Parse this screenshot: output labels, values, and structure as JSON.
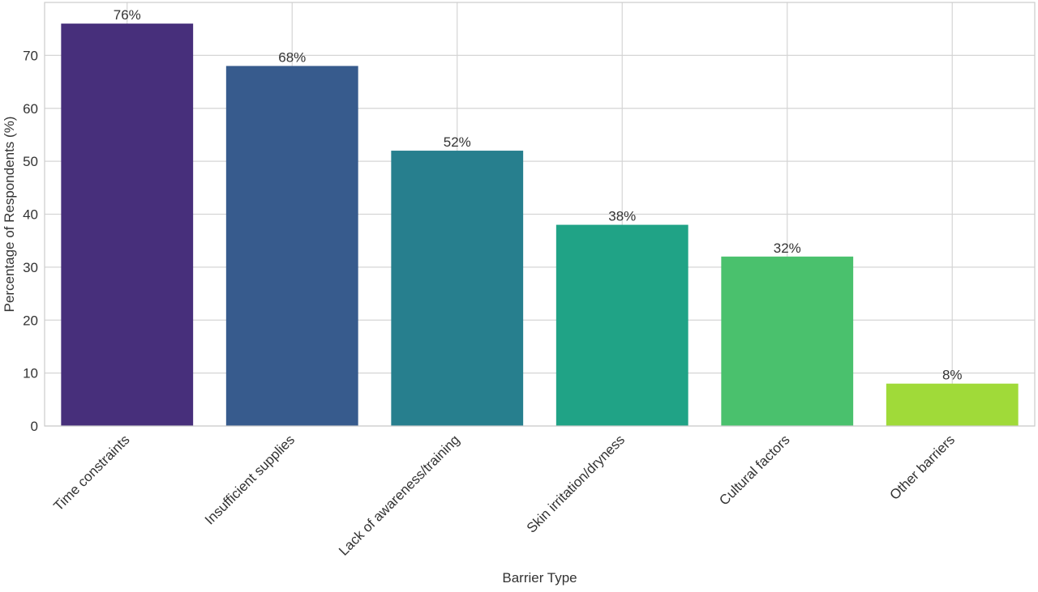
{
  "chart_data": {
    "type": "bar",
    "categories": [
      "Time constraints",
      "Insufficient supplies",
      "Lack of awareness/training",
      "Skin irritation/dryness",
      "Cultural factors",
      "Other barriers"
    ],
    "values": [
      76,
      68,
      52,
      38,
      32,
      8
    ],
    "value_labels": [
      "76%",
      "68%",
      "52%",
      "38%",
      "32%",
      "8%"
    ],
    "colors": [
      "#472f7b",
      "#375b8d",
      "#277f8e",
      "#20a386",
      "#4ac16d",
      "#a0da39"
    ],
    "title": "",
    "xlabel": "Barrier Type",
    "ylabel": "Percentage of Respondents (%)",
    "ylim": [
      0,
      80
    ],
    "yticks": [
      0,
      10,
      20,
      30,
      40,
      50,
      60,
      70
    ],
    "grid": true,
    "legend": "none"
  }
}
